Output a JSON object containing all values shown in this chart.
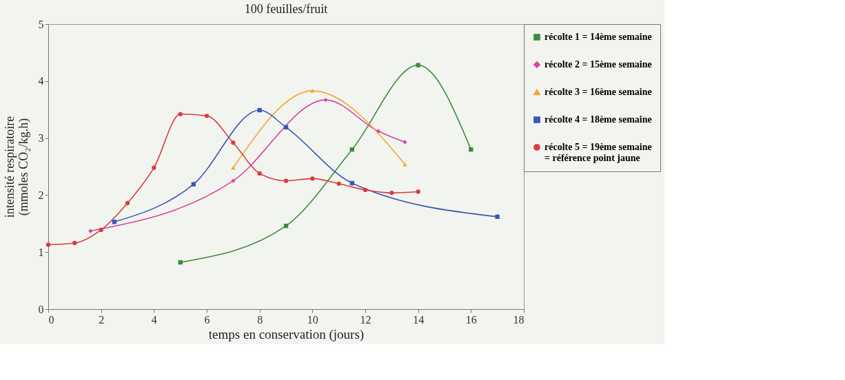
{
  "chart_data": {
    "type": "line",
    "title": "100 feuilles/fruit",
    "xlabel": "temps en conservation (jours)",
    "ylabel": "intensité respiratoire\n(mmoles CO₂/kg.h)",
    "xlim": [
      0,
      18
    ],
    "xticks": [
      0,
      2,
      4,
      6,
      8,
      10,
      12,
      14,
      16,
      18
    ],
    "ylim": [
      0,
      5
    ],
    "yticks": [
      0,
      1,
      2,
      3,
      4,
      5
    ],
    "grid": false,
    "legend": "right",
    "line_style": "solid",
    "series": [
      {
        "name": "récolte 1 = 14ème semaine",
        "color": "#3c8c3c",
        "marker": "square",
        "x": [
          5,
          9,
          11.5,
          14,
          16
        ],
        "values": [
          0.82,
          1.46,
          2.8,
          4.28,
          2.8
        ]
      },
      {
        "name": "récolte 2 = 15ème semaine",
        "color": "#d6479e",
        "marker": "diamond",
        "x": [
          1.6,
          7,
          10.5,
          12.5,
          13.5
        ],
        "values": [
          1.37,
          2.25,
          3.67,
          3.12,
          2.93
        ]
      },
      {
        "name": "récolte 3 = 16ème semaine",
        "color": "#f0a830",
        "marker": "triangle",
        "x": [
          7,
          10,
          13.5
        ],
        "values": [
          2.48,
          3.83,
          2.54
        ]
      },
      {
        "name": "récolte 4 = 18ème semaine",
        "color": "#3a56b8",
        "marker": "square",
        "x": [
          2.5,
          5.5,
          8,
          9,
          11.5,
          17
        ],
        "values": [
          1.53,
          2.19,
          3.49,
          3.19,
          2.21,
          1.62
        ]
      },
      {
        "name": "récolte 5 = 19ème semaine\n= référence point jaune",
        "color": "#d83c3c",
        "marker": "circle",
        "x": [
          0,
          1,
          2,
          3,
          4,
          5,
          6,
          7,
          8,
          9,
          10,
          11,
          12,
          13,
          14
        ],
        "values": [
          1.13,
          1.16,
          1.39,
          1.86,
          2.48,
          3.42,
          3.39,
          2.92,
          2.38,
          2.25,
          2.29,
          2.2,
          2.09,
          2.04,
          2.06
        ]
      }
    ]
  }
}
